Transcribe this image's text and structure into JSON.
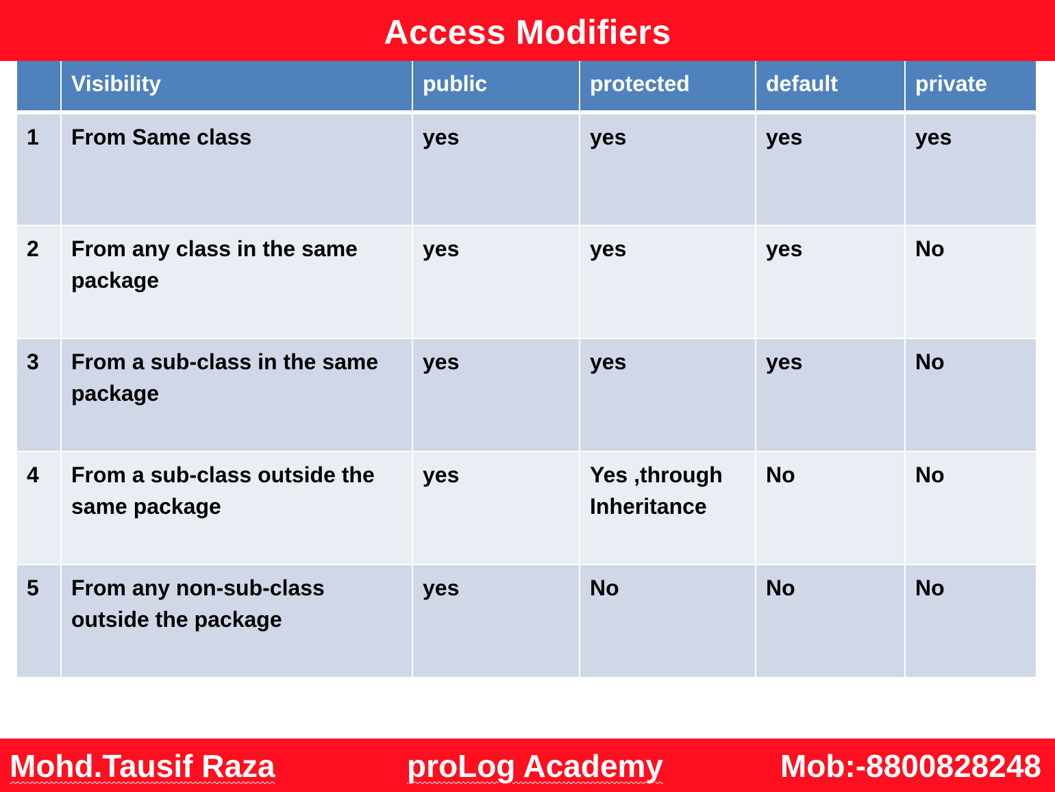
{
  "title": "Access Modifiers",
  "colors": {
    "banner": "#ff0f1f",
    "header_row": "#4f81bd",
    "row_dark": "#d0d8e8",
    "row_light": "#e9edf4"
  },
  "table": {
    "headers": [
      "",
      "Visibility",
      "public",
      "protected",
      "default",
      "private"
    ],
    "rows": [
      {
        "num": "1",
        "visibility": "From Same class",
        "public": "yes",
        "protected": "yes",
        "default": "yes",
        "private": "yes"
      },
      {
        "num": "2",
        "visibility": "From any class in the same package",
        "public": "yes",
        "protected": "yes",
        "default": "yes",
        "private": "No"
      },
      {
        "num": "3",
        "visibility": "From a sub-class in the same package",
        "public": "yes",
        "protected": "yes",
        "default": "yes",
        "private": "No"
      },
      {
        "num": "4",
        "visibility": "From a sub-class outside the same package",
        "public": "yes",
        "protected": "Yes ,through Inheritance",
        "default": "No",
        "private": "No"
      },
      {
        "num": "5",
        "visibility": "From any non-sub-class outside the package",
        "public": "yes",
        "protected": "No",
        "default": "No",
        "private": "No"
      }
    ]
  },
  "footer": {
    "author": "Mohd.Tausif Raza",
    "academy": "proLog Academy",
    "contact": "Mob:-8800828248"
  }
}
